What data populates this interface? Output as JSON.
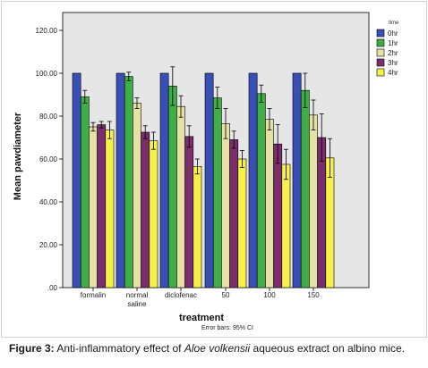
{
  "chart_data": {
    "type": "bar",
    "xlabel": "treatment",
    "ylabel": "Mean pawdiameter",
    "ylim": [
      0,
      120
    ],
    "yticks": [
      0,
      20,
      40,
      60,
      80,
      100,
      120
    ],
    "ytick_labels": [
      ".00",
      "20.00",
      "40.00",
      "60.00",
      "80.00",
      "100.00",
      "120.00"
    ],
    "grid": false,
    "legend_position": "right",
    "legend_title": "time",
    "categories": [
      [
        "formalin"
      ],
      [
        "normal",
        "saline"
      ],
      [
        "diclofenac"
      ],
      [
        "50"
      ],
      [
        "100"
      ],
      [
        "150"
      ]
    ],
    "series": [
      {
        "name": "0hr",
        "color": "#3a4fb5",
        "values": [
          100,
          100,
          100,
          100,
          100,
          100
        ],
        "err": [
          0,
          0,
          0,
          0,
          0,
          0
        ]
      },
      {
        "name": "1hr",
        "color": "#3fae46",
        "values": [
          89,
          98.5,
          94,
          88.5,
          90.5,
          92
        ],
        "err": [
          3,
          2,
          9,
          5,
          4,
          8
        ]
      },
      {
        "name": "2hr",
        "color": "#e6e1a6",
        "values": [
          75,
          86,
          84.5,
          76.5,
          78.5,
          80.5
        ],
        "err": [
          2,
          2.5,
          5,
          7,
          5,
          7
        ]
      },
      {
        "name": "3hr",
        "color": "#7a2e6e",
        "values": [
          76,
          72.5,
          70.5,
          69,
          67,
          70
        ],
        "err": [
          1.5,
          3,
          5,
          4,
          9,
          11
        ]
      },
      {
        "name": "4hr",
        "color": "#f6f04a",
        "values": [
          73.5,
          68.5,
          56.5,
          60,
          57.5,
          60.5
        ],
        "err": [
          4,
          4,
          3.5,
          4,
          7,
          9
        ]
      }
    ],
    "note": "Error bars: 95% CI"
  },
  "colors": {
    "plot_background": "#e6e6e6",
    "bar_outline": "#000000",
    "error_bar": "#000000"
  },
  "caption": {
    "label": "Figure 3:",
    "text_before": " Anti-inflammatory effect of ",
    "italic": "Aloe volkensii",
    "text_after": " aqueous extract on albino mice."
  }
}
